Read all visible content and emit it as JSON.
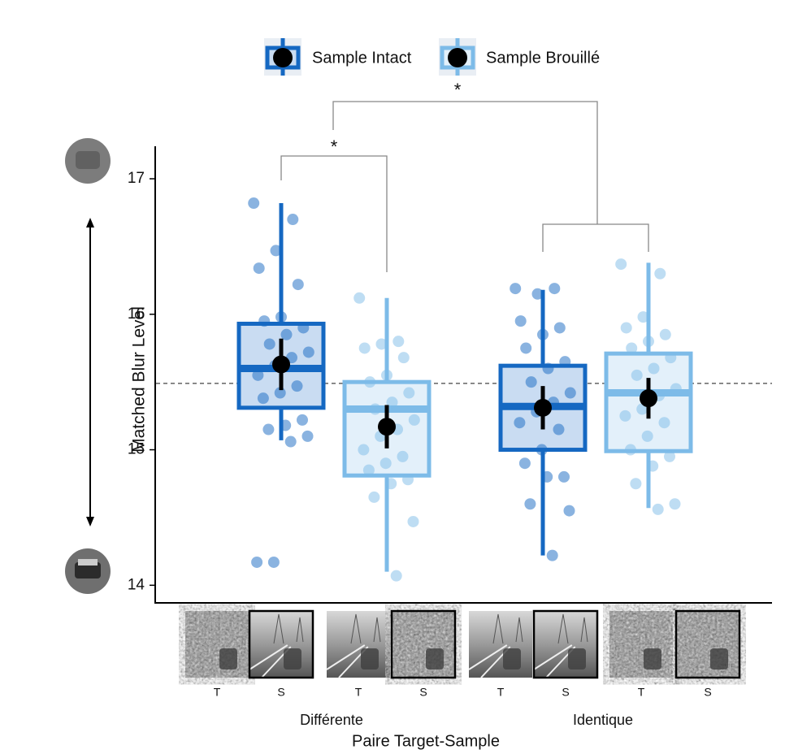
{
  "chart_data": {
    "type": "box",
    "y_label": "Matched Blur Level",
    "x_label": "Paire Target-Sample",
    "groups": [
      "Différente",
      "Identique"
    ],
    "tick_labels": [
      "T",
      "S",
      "T",
      "S",
      "T",
      "S",
      "T",
      "S"
    ],
    "annotations": [
      "*",
      "*"
    ],
    "ylim": [
      13.87,
      17.24
    ],
    "yticks": [
      14,
      15,
      16,
      17
    ],
    "reference_line": 15.49,
    "series": [
      {
        "name": "Sample Intact",
        "color": "#1568c2",
        "fill": "#c9dcf2",
        "boxes": [
          {
            "min": 15.07,
            "q1": 15.31,
            "median": 15.6,
            "q3": 15.93,
            "max": 16.82,
            "mean": 15.63,
            "error": 0.19,
            "points": [
              16.82,
              16.7,
              16.47,
              16.34,
              16.22,
              15.98,
              15.95,
              15.9,
              15.85,
              15.78,
              15.72,
              15.68,
              15.62,
              15.55,
              15.47,
              15.42,
              15.38,
              15.22,
              15.18,
              15.15,
              15.1,
              15.06,
              14.17,
              14.17
            ]
          },
          {
            "min": 14.22,
            "q1": 15.0,
            "median": 15.32,
            "q3": 15.62,
            "max": 16.18,
            "mean": 15.31,
            "error": 0.16,
            "points": [
              16.19,
              16.19,
              16.15,
              15.95,
              15.9,
              15.85,
              15.75,
              15.65,
              15.6,
              15.5,
              15.42,
              15.35,
              15.28,
              15.2,
              15.15,
              15.0,
              14.9,
              14.8,
              14.8,
              14.6,
              14.55,
              14.22
            ]
          }
        ]
      },
      {
        "name": "Sample Brouillé",
        "color": "#7dbbe8",
        "fill": "#e3f0fa",
        "boxes": [
          {
            "min": 14.1,
            "q1": 14.81,
            "median": 15.3,
            "q3": 15.5,
            "max": 16.12,
            "mean": 15.17,
            "error": 0.16,
            "points": [
              16.12,
              15.8,
              15.78,
              15.75,
              15.68,
              15.55,
              15.5,
              15.42,
              15.35,
              15.3,
              15.22,
              15.15,
              15.1,
              15.0,
              14.95,
              14.9,
              14.85,
              14.78,
              14.75,
              14.65,
              14.47,
              14.07
            ]
          },
          {
            "min": 14.57,
            "q1": 14.99,
            "median": 15.42,
            "q3": 15.71,
            "max": 16.38,
            "mean": 15.38,
            "error": 0.15,
            "points": [
              16.37,
              16.3,
              15.98,
              15.9,
              15.85,
              15.8,
              15.75,
              15.68,
              15.6,
              15.55,
              15.45,
              15.4,
              15.3,
              15.25,
              15.2,
              15.1,
              15.0,
              14.95,
              14.88,
              14.75,
              14.6,
              14.56
            ]
          }
        ]
      }
    ]
  }
}
